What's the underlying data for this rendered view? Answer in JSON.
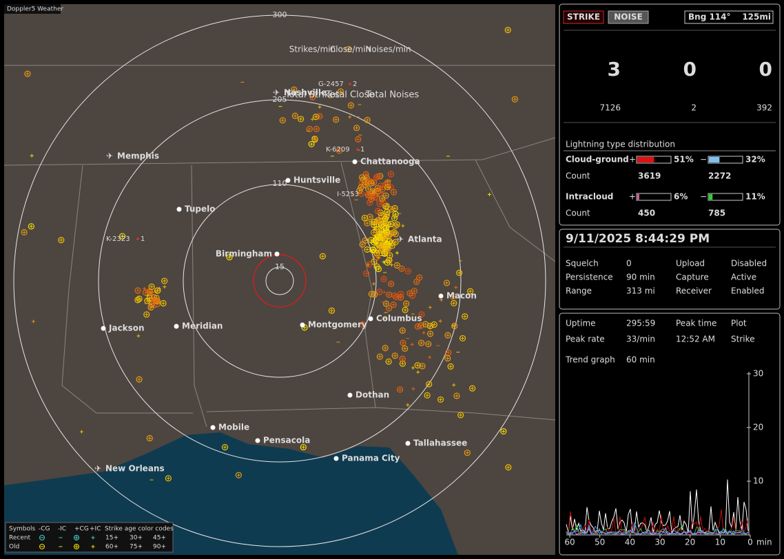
{
  "app_title": "Doppler5 Weather",
  "map": {
    "ring_labels": [
      "300",
      "205",
      "110",
      "15"
    ],
    "cities": [
      "Nashville",
      "Memphis",
      "Chattanooga",
      "Huntsville",
      "Tupelo",
      "Atlanta",
      "Birmingham",
      "Macon",
      "Jackson",
      "Meridian",
      "Montgomery",
      "Columbus",
      "Dothan",
      "Mobile",
      "Pensacola",
      "Tallahassee",
      "Panama City",
      "New Orleans"
    ],
    "storm_tags": [
      {
        "id": "G-2457",
        "count": "2"
      },
      {
        "id": "K-6209",
        "count": "1"
      },
      {
        "id": "I-5253"
      },
      {
        "id": "K-2323",
        "count": "1"
      }
    ]
  },
  "legend": {
    "symbols": "Symbols",
    "columns": [
      "-CG",
      "-IC",
      "+CG",
      "+IC"
    ],
    "age_title": "Strike age color codes",
    "rows": [
      {
        "label": "Recent",
        "ages": [
          "15+",
          "30+",
          "45+"
        ]
      },
      {
        "label": "Old",
        "ages": [
          "60+",
          "75+",
          "90+"
        ]
      }
    ]
  },
  "toolbar": {
    "strike": "STRIKE",
    "noise": "NOISE",
    "bearing": "Bng 114°",
    "distance": "125mi"
  },
  "rates": [
    {
      "label": "Strikes/min",
      "value": 3,
      "total_label": "Total Strikes",
      "total": 7126
    },
    {
      "label": "Close/min",
      "value": 0,
      "total_label": "Total Close",
      "total": 2
    },
    {
      "label": "Noises/min",
      "value": 0,
      "total_label": "Total Noises",
      "total": 392
    }
  ],
  "distribution": {
    "title": "Lightning type distribution",
    "count_label": "Count",
    "rows": [
      {
        "name": "Cloud-ground",
        "pos_sign": "+",
        "pos": {
          "value": 51,
          "label": "51%"
        },
        "neg_sign": "−",
        "neg": {
          "value": 32,
          "label": "32%"
        },
        "pos_count": 3619,
        "neg_count": 2272
      },
      {
        "name": "Intracloud",
        "pos_sign": "+",
        "pos": {
          "value": 6,
          "label": "6%"
        },
        "neg_sign": "−",
        "neg": {
          "value": 11,
          "label": "11%"
        },
        "pos_count": 450,
        "neg_count": 785
      }
    ]
  },
  "datetime": "9/11/2025 8:44:29 PM",
  "status": [
    [
      "Squelch",
      "0",
      "Upload",
      "Disabled"
    ],
    [
      "Persistence",
      "90 min",
      "Capture",
      "Active"
    ],
    [
      "Range",
      "313 mi",
      "Receiver",
      "Enabled"
    ]
  ],
  "stats": {
    "uptime_label": "Uptime",
    "uptime": "295:59",
    "peak_time_label": "Peak time",
    "peak_time": "12:52 AM",
    "plot_label": "Plot",
    "plot": "Strike",
    "peak_rate_label": "Peak rate",
    "peak_rate": "33/min",
    "trend_label": "Trend graph",
    "trend": "60 min"
  },
  "trend_chart": {
    "ylim": [
      0,
      30
    ],
    "yticks": [
      10,
      20,
      30
    ],
    "xlim": [
      60,
      0
    ],
    "xticks": [
      60,
      50,
      40,
      30,
      20,
      10,
      0
    ],
    "x_unit": "min"
  }
}
